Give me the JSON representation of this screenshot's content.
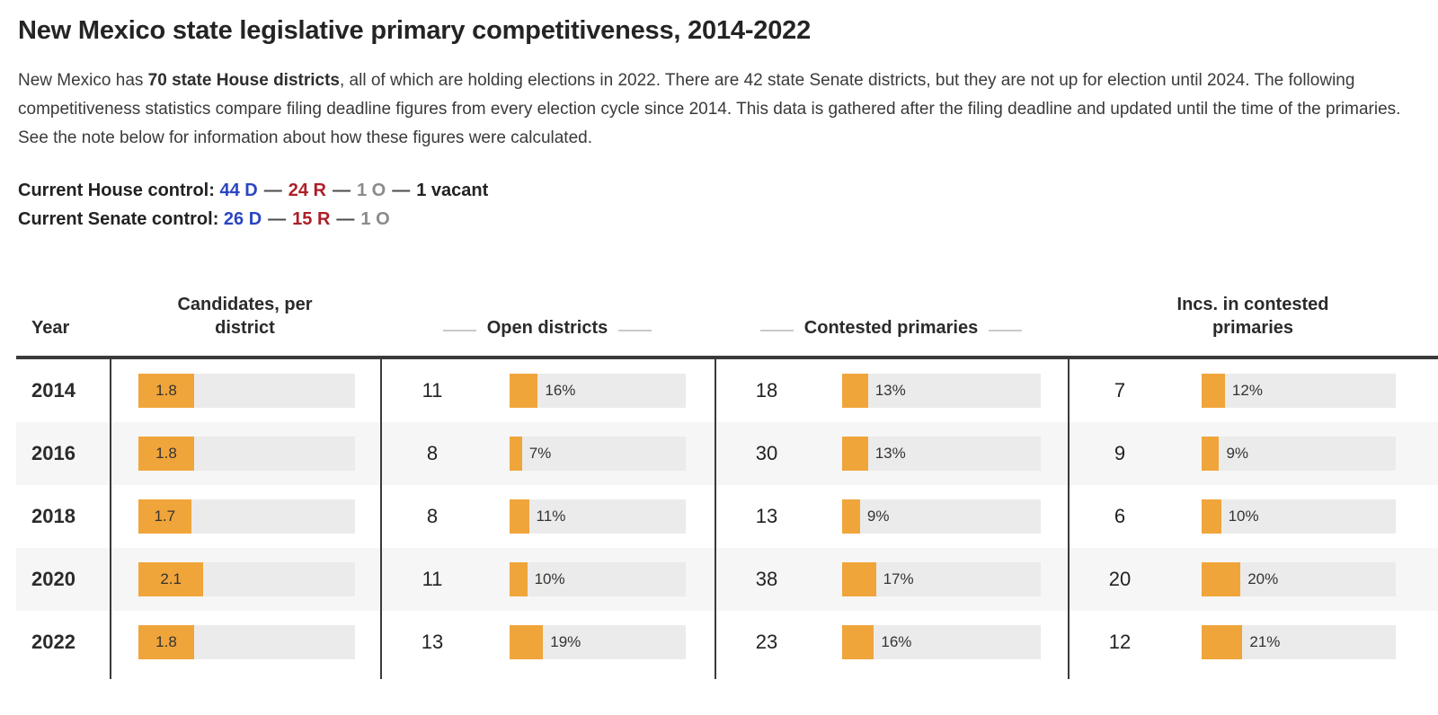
{
  "header": {
    "title": "New Mexico state legislative primary competitiveness, 2014-2022",
    "intro": {
      "before_bold": "New Mexico has ",
      "bold": "70 state House districts",
      "after_bold": ", all of which are holding elections in 2022. There are 42 state Senate districts, but they are not up for election until 2024. The following competitiveness statistics compare filing deadline figures from every election cycle since 2014. This data is gathered after the filing deadline and updated until the time of the primaries. See the note below for information about how these figures were calculated."
    }
  },
  "control_summary": {
    "dash": "—",
    "house": {
      "label": "Current House control:",
      "dem": "44 D",
      "rep": "24 R",
      "other": "1 O",
      "vacant": "1 vacant"
    },
    "senate": {
      "label": "Current Senate control:",
      "dem": "26 D",
      "rep": "15 R",
      "other": "1 O"
    }
  },
  "colors": {
    "accent_orange": "#f0a53a",
    "bar_track_gray": "#ebebeb",
    "row_stripe": "#f6f6f6",
    "table_border": "#3a3a3a",
    "dem_blue": "#2b46c0",
    "rep_red": "#ad1f28",
    "other_gray": "#8b8b8b"
  },
  "chart_data": {
    "type": "table",
    "title": "New Mexico state legislative primary competitiveness, 2014-2022",
    "headers": {
      "year": "Year",
      "candidates": "Candidates, per district",
      "open": "Open districts",
      "contested": "Contested primaries",
      "incs": "Incs. in contested primaries"
    },
    "candidates_bar_scale_max": 7,
    "rows": [
      {
        "year": "2014",
        "candidates": {
          "value": 1.8,
          "label": "1.8"
        },
        "open": {
          "count": 11,
          "pct": 16,
          "pct_label": "16%"
        },
        "contested": {
          "count": 18,
          "pct": 13,
          "pct_label": "13%"
        },
        "incs": {
          "count": 7,
          "pct": 12,
          "pct_label": "12%"
        }
      },
      {
        "year": "2016",
        "candidates": {
          "value": 1.8,
          "label": "1.8"
        },
        "open": {
          "count": 8,
          "pct": 7,
          "pct_label": "7%"
        },
        "contested": {
          "count": 30,
          "pct": 13,
          "pct_label": "13%"
        },
        "incs": {
          "count": 9,
          "pct": 9,
          "pct_label": "9%"
        }
      },
      {
        "year": "2018",
        "candidates": {
          "value": 1.7,
          "label": "1.7"
        },
        "open": {
          "count": 8,
          "pct": 11,
          "pct_label": "11%"
        },
        "contested": {
          "count": 13,
          "pct": 9,
          "pct_label": "9%"
        },
        "incs": {
          "count": 6,
          "pct": 10,
          "pct_label": "10%"
        }
      },
      {
        "year": "2020",
        "candidates": {
          "value": 2.1,
          "label": "2.1"
        },
        "open": {
          "count": 11,
          "pct": 10,
          "pct_label": "10%"
        },
        "contested": {
          "count": 38,
          "pct": 17,
          "pct_label": "17%"
        },
        "incs": {
          "count": 20,
          "pct": 20,
          "pct_label": "20%"
        }
      },
      {
        "year": "2022",
        "candidates": {
          "value": 1.8,
          "label": "1.8"
        },
        "open": {
          "count": 13,
          "pct": 19,
          "pct_label": "19%"
        },
        "contested": {
          "count": 23,
          "pct": 16,
          "pct_label": "16%"
        },
        "incs": {
          "count": 12,
          "pct": 21,
          "pct_label": "21%"
        }
      }
    ]
  }
}
